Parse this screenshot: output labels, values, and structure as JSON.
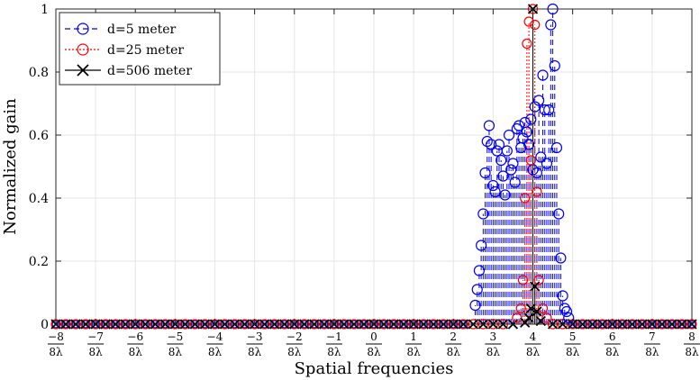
{
  "chart_data": {
    "type": "stem",
    "xlabel": "Spatial frequencies",
    "ylabel": "Normalized gain",
    "xlim": [
      -8,
      8
    ],
    "ylim": [
      0,
      1
    ],
    "grid": true,
    "legend_position": "top-left",
    "x_ticks": [
      {
        "num": "−8",
        "den": "8λ"
      },
      {
        "num": "−7",
        "den": "8λ"
      },
      {
        "num": "−6",
        "den": "8λ"
      },
      {
        "num": "−5",
        "den": "8λ"
      },
      {
        "num": "−4",
        "den": "8λ"
      },
      {
        "num": "−3",
        "den": "8λ"
      },
      {
        "num": "−2",
        "den": "8λ"
      },
      {
        "num": "−1",
        "den": "8λ"
      },
      {
        "num": "0",
        "den": "8λ"
      },
      {
        "num": "1",
        "den": "8λ"
      },
      {
        "num": "2",
        "den": "8λ"
      },
      {
        "num": "3",
        "den": "8λ"
      },
      {
        "num": "4",
        "den": "8λ"
      },
      {
        "num": "5",
        "den": "8λ"
      },
      {
        "num": "6",
        "den": "8λ"
      },
      {
        "num": "7",
        "den": "8λ"
      },
      {
        "num": "8",
        "den": "8λ"
      }
    ],
    "y_ticks": [
      "0",
      "0.2",
      "0.4",
      "0.6",
      "0.8",
      "1"
    ],
    "series": [
      {
        "name": "d=5 meter",
        "color": "#0000ff",
        "marker": "circle",
        "line_style": "dashed",
        "points": [
          [
            2.55,
            0.06
          ],
          [
            2.6,
            0.11
          ],
          [
            2.65,
            0.17
          ],
          [
            2.7,
            0.25
          ],
          [
            2.75,
            0.35
          ],
          [
            2.8,
            0.48
          ],
          [
            2.85,
            0.58
          ],
          [
            2.9,
            0.63
          ],
          [
            2.95,
            0.57
          ],
          [
            3.0,
            0.44
          ],
          [
            3.05,
            0.42
          ],
          [
            3.1,
            0.55
          ],
          [
            3.15,
            0.57
          ],
          [
            3.2,
            0.52
          ],
          [
            3.25,
            0.47
          ],
          [
            3.3,
            0.41
          ],
          [
            3.35,
            0.55
          ],
          [
            3.4,
            0.6
          ],
          [
            3.45,
            0.49
          ],
          [
            3.5,
            0.51
          ],
          [
            3.55,
            0.45
          ],
          [
            3.6,
            0.62
          ],
          [
            3.65,
            0.63
          ],
          [
            3.7,
            0.56
          ],
          [
            3.75,
            0.59
          ],
          [
            3.8,
            0.64
          ],
          [
            3.85,
            0.61
          ],
          [
            3.9,
            0.57
          ],
          [
            3.95,
            0.65
          ],
          [
            4.0,
            0.49
          ],
          [
            4.05,
            0.69
          ],
          [
            4.1,
            0.48
          ],
          [
            4.15,
            0.71
          ],
          [
            4.2,
            0.53
          ],
          [
            4.25,
            0.79
          ],
          [
            4.3,
            0.68
          ],
          [
            4.35,
            0.51
          ],
          [
            4.4,
            0.68
          ],
          [
            4.45,
            0.95
          ],
          [
            4.5,
            1.0
          ],
          [
            4.55,
            0.82
          ],
          [
            4.6,
            0.56
          ],
          [
            4.65,
            0.35
          ],
          [
            4.7,
            0.21
          ],
          [
            4.75,
            0.09
          ],
          [
            4.8,
            0.05
          ],
          [
            4.85,
            0.04
          ],
          [
            4.9,
            0.02
          ]
        ]
      },
      {
        "name": "d=25 meter",
        "color": "#ff0000",
        "marker": "circle",
        "line_style": "dotted",
        "points": [
          [
            3.6,
            0.02
          ],
          [
            3.7,
            0.05
          ],
          [
            3.75,
            0.14
          ],
          [
            3.8,
            0.4
          ],
          [
            3.85,
            0.89
          ],
          [
            3.9,
            0.96
          ],
          [
            3.95,
            0.52
          ],
          [
            4.0,
            1.0
          ],
          [
            4.05,
            0.95
          ],
          [
            4.1,
            0.42
          ],
          [
            4.15,
            0.14
          ],
          [
            4.25,
            0.05
          ],
          [
            4.35,
            0.02
          ]
        ]
      },
      {
        "name": "d=506 meter",
        "color": "#000000",
        "marker": "x",
        "line_style": "solid",
        "points": [
          [
            3.8,
            0.005
          ],
          [
            3.9,
            0.02
          ],
          [
            3.95,
            0.05
          ],
          [
            4.0,
            1.0
          ],
          [
            4.05,
            0.12
          ],
          [
            4.1,
            0.04
          ],
          [
            4.2,
            0.01
          ]
        ]
      }
    ]
  }
}
